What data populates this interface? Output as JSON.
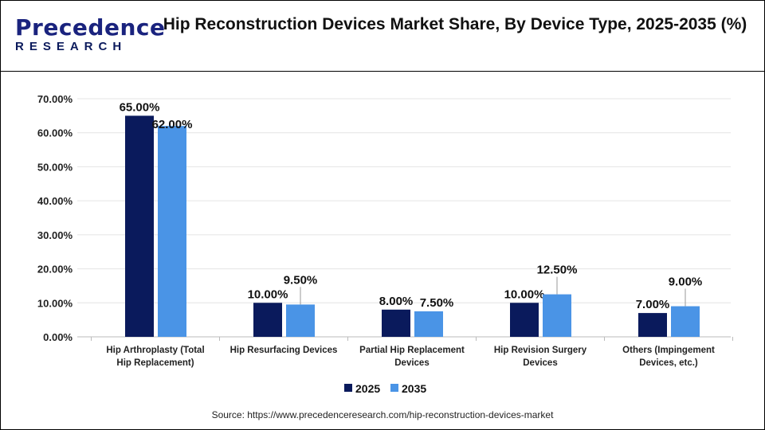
{
  "logo": {
    "line1": "Precedence",
    "line2": "RESEARCH"
  },
  "title": "Hip Reconstruction Devices Market Share, By Device Type, 2025-2035 (%)",
  "source": "Source: https://www.precedenceresearch.com/hip-reconstruction-devices-market",
  "chart_data": {
    "type": "bar",
    "title": "Hip Reconstruction Devices Market Share, By Device Type, 2025-2035 (%)",
    "categories": [
      [
        "Hip Arthroplasty (Total",
        "Hip Replacement)"
      ],
      [
        "Hip Resurfacing Devices"
      ],
      [
        "Partial Hip Replacement",
        "Devices"
      ],
      [
        "Hip Revision Surgery",
        "Devices"
      ],
      [
        "Others (Impingement",
        "Devices, etc.)"
      ]
    ],
    "series": [
      {
        "name": "2025",
        "color": "#0a1a5c",
        "values": [
          65,
          10,
          8,
          10,
          7
        ],
        "labels": [
          "65.00%",
          "10.00%",
          "8.00%",
          "10.00%",
          "7.00%"
        ]
      },
      {
        "name": "2035",
        "color": "#4a94e6",
        "values": [
          62,
          9.5,
          7.5,
          12.5,
          9
        ],
        "labels": [
          "62.00%",
          "9.50%",
          "7.50%",
          "12.50%",
          "9.00%"
        ]
      }
    ],
    "ylim": [
      0,
      70
    ],
    "yticks": [
      "0.00%",
      "10.00%",
      "20.00%",
      "30.00%",
      "40.00%",
      "50.00%",
      "60.00%",
      "70.00%"
    ],
    "grid": true,
    "legend": "bottom"
  }
}
